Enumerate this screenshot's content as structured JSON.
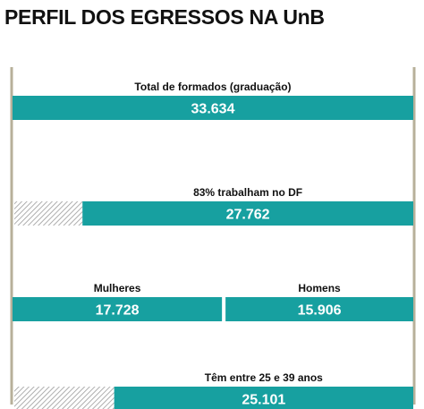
{
  "title": "PERFIL DOS EGRESSOS NA UnB",
  "colors": {
    "bar": "#17a0a0",
    "axis": "#b7b09a",
    "hatch": "#9a9a9a",
    "text": "#111111"
  },
  "chart_data": {
    "type": "bar",
    "orientation": "horizontal",
    "xlim": [
      0,
      33634
    ],
    "rows": [
      {
        "label": "Total de formados (graduação)",
        "segments": [
          {
            "value": 33634,
            "display": "33.634"
          }
        ]
      },
      {
        "label": "83% trabalham no DF",
        "remainder_hatched": true,
        "segments": [
          {
            "value": 27762,
            "display": "27.762"
          }
        ]
      },
      {
        "segments": [
          {
            "label": "Mulheres",
            "value": 17728,
            "display": "17.728"
          },
          {
            "label": "Homens",
            "value": 15906,
            "display": "15.906"
          }
        ]
      },
      {
        "label": "Têm entre 25 e 39 anos",
        "remainder_hatched": true,
        "segments": [
          {
            "value": 25101,
            "display": "25.101"
          }
        ]
      }
    ]
  }
}
